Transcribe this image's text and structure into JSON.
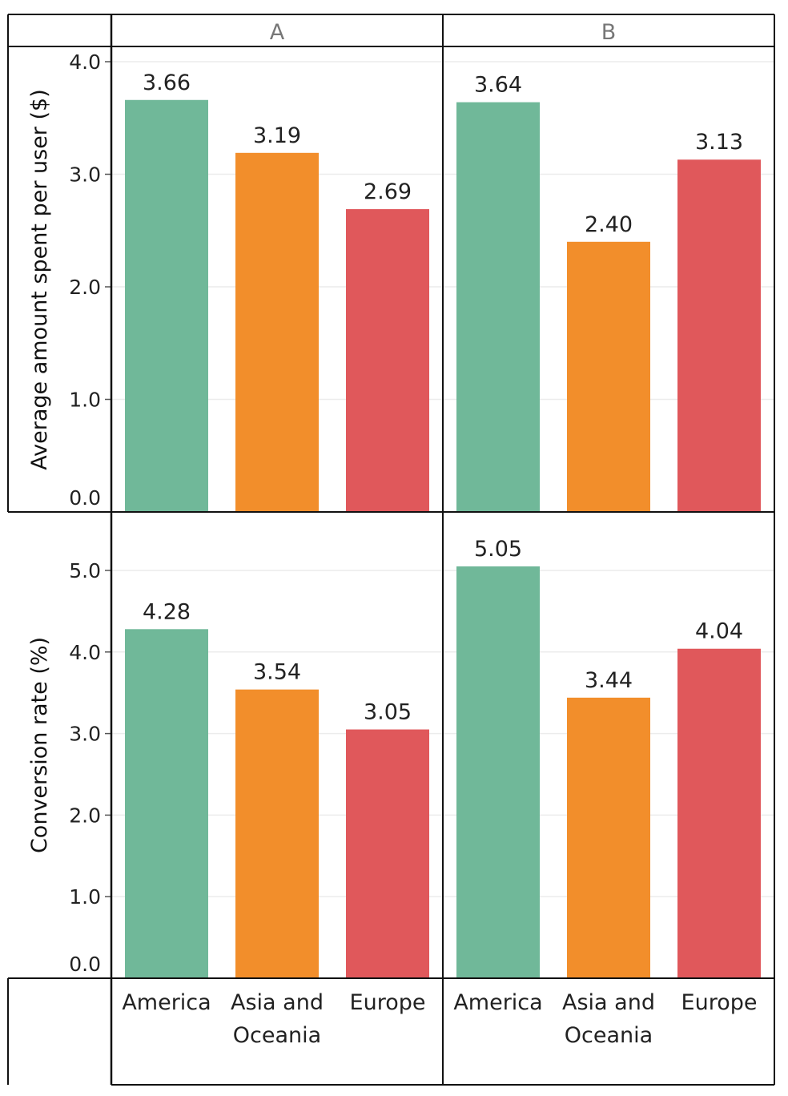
{
  "chart_data": {
    "type": "bar",
    "columns": [
      "A",
      "B"
    ],
    "categories": [
      "America",
      "Asia and Oceania",
      "Europe"
    ],
    "category_label_lines": [
      [
        "America"
      ],
      [
        "Asia and",
        "Oceania"
      ],
      [
        "Europe"
      ]
    ],
    "colors": {
      "America": "#70b899",
      "Asia and Oceania": "#f28e2b",
      "Europe": "#e0585b"
    },
    "grid": true,
    "rows": [
      {
        "ylabel": "Average amount spent per user ($)",
        "ylim": [
          0,
          4.0
        ],
        "ticks": [
          "0.0",
          "1.0",
          "2.0",
          "3.0",
          "4.0"
        ],
        "series": [
          {
            "column": "A",
            "values": [
              3.66,
              3.19,
              2.69
            ],
            "labels": [
              "3.66",
              "3.19",
              "2.69"
            ]
          },
          {
            "column": "B",
            "values": [
              3.64,
              2.4,
              3.13
            ],
            "labels": [
              "3.64",
              "2.40",
              "3.13"
            ]
          }
        ]
      },
      {
        "ylabel": "Conversion rate (%)",
        "ylim": [
          0,
          5.0
        ],
        "ticks": [
          "0.0",
          "1.0",
          "2.0",
          "3.0",
          "4.0",
          "5.0"
        ],
        "series": [
          {
            "column": "A",
            "values": [
              4.28,
              3.54,
              3.05
            ],
            "labels": [
              "4.28",
              "3.54",
              "3.05"
            ]
          },
          {
            "column": "B",
            "values": [
              5.05,
              3.44,
              4.04
            ],
            "labels": [
              "5.05",
              "3.44",
              "4.04"
            ]
          }
        ]
      }
    ]
  }
}
